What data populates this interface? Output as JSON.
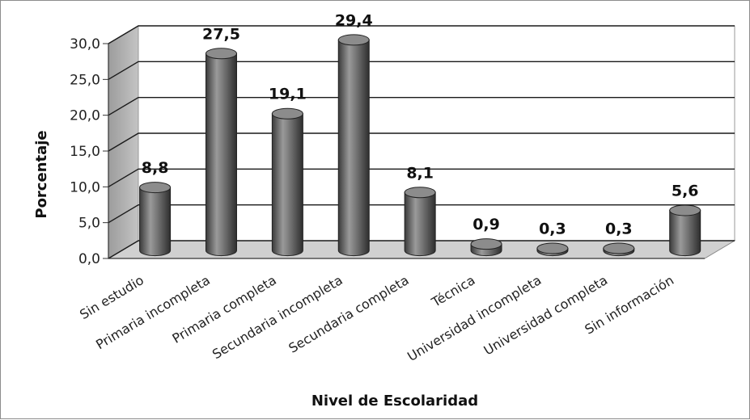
{
  "chart_data": {
    "type": "bar",
    "title": "",
    "xlabel": "Nivel de Escolaridad",
    "ylabel": "Porcentaje",
    "ylim": [
      0,
      30
    ],
    "y_ticks": [
      "0,0",
      "5,0",
      "10,0",
      "15,0",
      "20,0",
      "25,0",
      "30,0"
    ],
    "categories": [
      "Sin estudio",
      "Primaria incompleta",
      "Primaria completa",
      "Secundaria incompleta",
      "Secundaria completa",
      "Técnica",
      "Universidad incompleta",
      "Universidad completa",
      "Sin información"
    ],
    "values": [
      8.8,
      27.5,
      19.1,
      29.4,
      8.1,
      0.9,
      0.3,
      0.3,
      5.6
    ],
    "data_labels": [
      "8,8",
      "27,5",
      "19,1",
      "29,4",
      "8,1",
      "0,9",
      "0,3",
      "0,3",
      "5,6"
    ],
    "grid": true,
    "style": "3d-cylinder",
    "colors": {
      "bar": "#6e6e6e",
      "wall": "#ffffff",
      "side_wall": "#a8a8a8",
      "floor": "#d0d0d0",
      "grid": "#000000"
    }
  }
}
